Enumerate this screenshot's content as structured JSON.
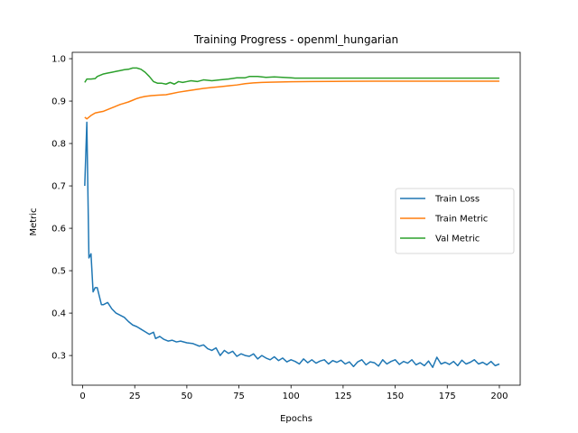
{
  "chart_data": {
    "type": "line",
    "title": "Training Progress - openml_hungarian",
    "xlabel": "Epochs",
    "ylabel": "Metric",
    "xlim": [
      -5,
      210
    ],
    "ylim": [
      0.23,
      1.015
    ],
    "xticks": [
      0,
      25,
      50,
      75,
      100,
      125,
      150,
      175,
      200
    ],
    "yticks": [
      0.3,
      0.4,
      0.5,
      0.6,
      0.7,
      0.8,
      0.9,
      1.0
    ],
    "ytick_labels": [
      "0.3",
      "0.4",
      "0.5",
      "0.6",
      "0.7",
      "0.8",
      "0.9",
      "1.0"
    ],
    "grid": false,
    "legend_position": "center-right",
    "series": [
      {
        "name": "Train Loss",
        "color": "#1f77b4",
        "points": [
          [
            1,
            0.7
          ],
          [
            2,
            0.85
          ],
          [
            3,
            0.53
          ],
          [
            4,
            0.54
          ],
          [
            5,
            0.45
          ],
          [
            6,
            0.46
          ],
          [
            7,
            0.46
          ],
          [
            8,
            0.44
          ],
          [
            9,
            0.42
          ],
          [
            10,
            0.42
          ],
          [
            12,
            0.425
          ],
          [
            14,
            0.41
          ],
          [
            16,
            0.4
          ],
          [
            18,
            0.395
          ],
          [
            20,
            0.39
          ],
          [
            22,
            0.38
          ],
          [
            24,
            0.372
          ],
          [
            26,
            0.368
          ],
          [
            28,
            0.362
          ],
          [
            30,
            0.356
          ],
          [
            32,
            0.35
          ],
          [
            34,
            0.355
          ],
          [
            35,
            0.34
          ],
          [
            37,
            0.345
          ],
          [
            39,
            0.338
          ],
          [
            41,
            0.334
          ],
          [
            43,
            0.336
          ],
          [
            45,
            0.332
          ],
          [
            47,
            0.334
          ],
          [
            50,
            0.33
          ],
          [
            53,
            0.328
          ],
          [
            56,
            0.322
          ],
          [
            58,
            0.325
          ],
          [
            60,
            0.316
          ],
          [
            62,
            0.312
          ],
          [
            64,
            0.318
          ],
          [
            66,
            0.3
          ],
          [
            68,
            0.312
          ],
          [
            70,
            0.305
          ],
          [
            72,
            0.31
          ],
          [
            74,
            0.298
          ],
          [
            76,
            0.304
          ],
          [
            78,
            0.3
          ],
          [
            80,
            0.298
          ],
          [
            82,
            0.304
          ],
          [
            84,
            0.292
          ],
          [
            86,
            0.3
          ],
          [
            88,
            0.294
          ],
          [
            90,
            0.29
          ],
          [
            92,
            0.297
          ],
          [
            94,
            0.288
          ],
          [
            96,
            0.294
          ],
          [
            98,
            0.285
          ],
          [
            100,
            0.29
          ],
          [
            102,
            0.286
          ],
          [
            104,
            0.28
          ],
          [
            106,
            0.292
          ],
          [
            108,
            0.283
          ],
          [
            110,
            0.29
          ],
          [
            112,
            0.282
          ],
          [
            114,
            0.287
          ],
          [
            116,
            0.29
          ],
          [
            118,
            0.28
          ],
          [
            120,
            0.288
          ],
          [
            122,
            0.284
          ],
          [
            124,
            0.289
          ],
          [
            126,
            0.28
          ],
          [
            128,
            0.285
          ],
          [
            130,
            0.274
          ],
          [
            132,
            0.285
          ],
          [
            134,
            0.29
          ],
          [
            136,
            0.278
          ],
          [
            138,
            0.285
          ],
          [
            140,
            0.283
          ],
          [
            142,
            0.275
          ],
          [
            144,
            0.29
          ],
          [
            146,
            0.28
          ],
          [
            148,
            0.286
          ],
          [
            150,
            0.29
          ],
          [
            152,
            0.279
          ],
          [
            154,
            0.286
          ],
          [
            156,
            0.282
          ],
          [
            158,
            0.29
          ],
          [
            160,
            0.278
          ],
          [
            162,
            0.283
          ],
          [
            164,
            0.276
          ],
          [
            166,
            0.287
          ],
          [
            168,
            0.272
          ],
          [
            170,
            0.296
          ],
          [
            172,
            0.28
          ],
          [
            174,
            0.284
          ],
          [
            176,
            0.279
          ],
          [
            178,
            0.286
          ],
          [
            180,
            0.276
          ],
          [
            182,
            0.289
          ],
          [
            184,
            0.28
          ],
          [
            186,
            0.284
          ],
          [
            188,
            0.29
          ],
          [
            190,
            0.28
          ],
          [
            192,
            0.284
          ],
          [
            194,
            0.278
          ],
          [
            196,
            0.286
          ],
          [
            198,
            0.276
          ],
          [
            200,
            0.28
          ]
        ]
      },
      {
        "name": "Train Metric",
        "color": "#ff7f0e",
        "points": [
          [
            1,
            0.862
          ],
          [
            2,
            0.858
          ],
          [
            3,
            0.862
          ],
          [
            4,
            0.866
          ],
          [
            6,
            0.872
          ],
          [
            8,
            0.874
          ],
          [
            10,
            0.876
          ],
          [
            12,
            0.88
          ],
          [
            14,
            0.884
          ],
          [
            16,
            0.888
          ],
          [
            18,
            0.892
          ],
          [
            20,
            0.895
          ],
          [
            22,
            0.898
          ],
          [
            24,
            0.902
          ],
          [
            26,
            0.906
          ],
          [
            28,
            0.909
          ],
          [
            30,
            0.911
          ],
          [
            33,
            0.913
          ],
          [
            36,
            0.914
          ],
          [
            40,
            0.915
          ],
          [
            43,
            0.918
          ],
          [
            46,
            0.921
          ],
          [
            50,
            0.924
          ],
          [
            54,
            0.927
          ],
          [
            58,
            0.93
          ],
          [
            62,
            0.932
          ],
          [
            66,
            0.934
          ],
          [
            70,
            0.936
          ],
          [
            74,
            0.938
          ],
          [
            78,
            0.941
          ],
          [
            82,
            0.943
          ],
          [
            86,
            0.944
          ],
          [
            90,
            0.9445
          ],
          [
            95,
            0.945
          ],
          [
            100,
            0.9455
          ],
          [
            110,
            0.946
          ],
          [
            120,
            0.9465
          ],
          [
            140,
            0.947
          ],
          [
            160,
            0.947
          ],
          [
            180,
            0.947
          ],
          [
            200,
            0.947
          ]
        ]
      },
      {
        "name": "Val Metric",
        "color": "#2ca02c",
        "points": [
          [
            1,
            0.944
          ],
          [
            2,
            0.952
          ],
          [
            4,
            0.952
          ],
          [
            6,
            0.953
          ],
          [
            7,
            0.958
          ],
          [
            8,
            0.96
          ],
          [
            10,
            0.964
          ],
          [
            12,
            0.966
          ],
          [
            14,
            0.968
          ],
          [
            16,
            0.97
          ],
          [
            18,
            0.972
          ],
          [
            20,
            0.974
          ],
          [
            22,
            0.975
          ],
          [
            24,
            0.978
          ],
          [
            26,
            0.978
          ],
          [
            28,
            0.975
          ],
          [
            30,
            0.968
          ],
          [
            32,
            0.958
          ],
          [
            34,
            0.946
          ],
          [
            36,
            0.942
          ],
          [
            38,
            0.942
          ],
          [
            40,
            0.94
          ],
          [
            42,
            0.944
          ],
          [
            44,
            0.94
          ],
          [
            46,
            0.946
          ],
          [
            48,
            0.944
          ],
          [
            50,
            0.946
          ],
          [
            52,
            0.948
          ],
          [
            55,
            0.946
          ],
          [
            58,
            0.95
          ],
          [
            62,
            0.948
          ],
          [
            66,
            0.95
          ],
          [
            70,
            0.952
          ],
          [
            74,
            0.955
          ],
          [
            78,
            0.955
          ],
          [
            80,
            0.958
          ],
          [
            84,
            0.958
          ],
          [
            88,
            0.956
          ],
          [
            92,
            0.957
          ],
          [
            96,
            0.956
          ],
          [
            100,
            0.955
          ],
          [
            102,
            0.954
          ],
          [
            110,
            0.954
          ],
          [
            130,
            0.954
          ],
          [
            150,
            0.954
          ],
          [
            175,
            0.954
          ],
          [
            200,
            0.954
          ]
        ]
      }
    ]
  }
}
